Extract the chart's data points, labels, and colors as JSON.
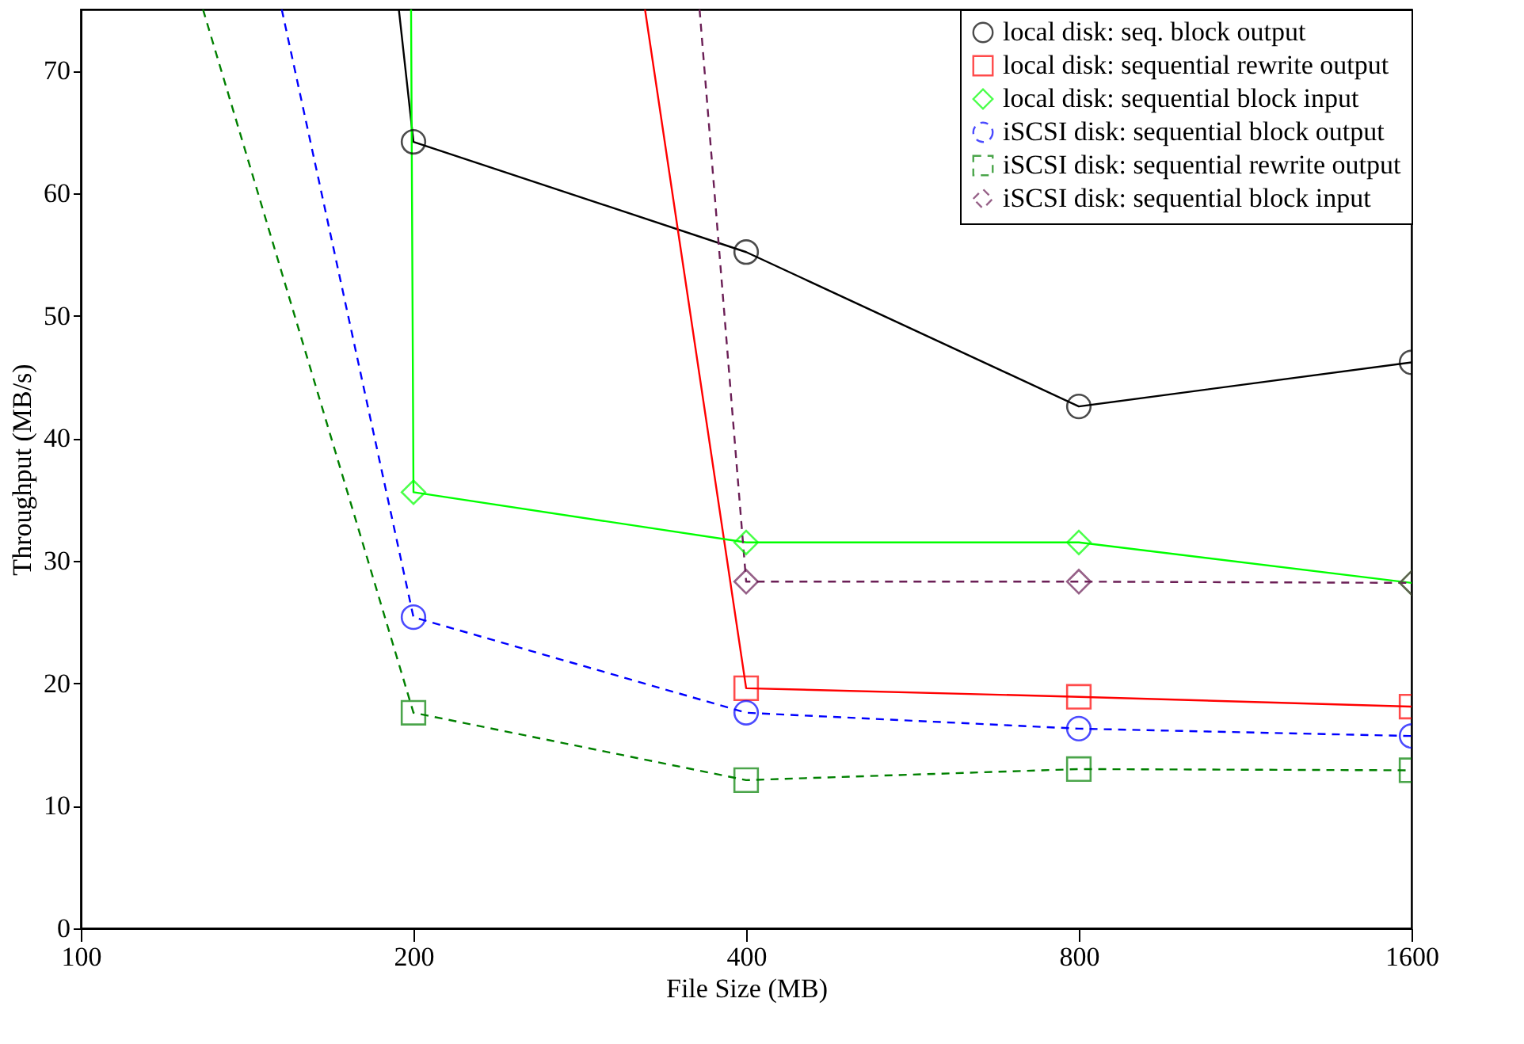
{
  "chart_data": {
    "type": "line",
    "xlabel": "File Size (MB)",
    "ylabel": "Throughput (MB/s)",
    "log": "x",
    "xlim": [
      100,
      1600
    ],
    "xticks": [
      100,
      200,
      400,
      800,
      1600
    ],
    "ylim": [
      0,
      75
    ],
    "yticks": [
      0,
      10,
      20,
      30,
      40,
      50,
      60,
      70
    ],
    "grid": false,
    "legend": "top right",
    "series": [
      {
        "name": "local disk: seq. block output",
        "color": "#000000",
        "marker": "circle",
        "line_style": "solid",
        "x": [
          194,
          200,
          400,
          800,
          1600
        ],
        "values": [
          75,
          64.2,
          55.2,
          42.6,
          46.2
        ]
      },
      {
        "name": "local disk: sequential rewrite output",
        "color": "#ff0000",
        "marker": "square",
        "line_style": "solid",
        "x": [
          324,
          400,
          800,
          1600
        ],
        "values": [
          75,
          19.6,
          18.9,
          18.1
        ]
      },
      {
        "name": "local disk: sequential block input",
        "color": "#00ff00",
        "marker": "diamond",
        "line_style": "solid",
        "x": [
          199,
          200,
          400,
          800,
          1600
        ],
        "values": [
          75,
          35.6,
          31.5,
          31.5,
          28.2
        ]
      },
      {
        "name": "iSCSI disk: sequential block output",
        "color": "#0000ff",
        "marker": "circle",
        "line_style": "dashed",
        "x": [
          152,
          200,
          400,
          800,
          1600
        ],
        "values": [
          75,
          25.4,
          17.6,
          16.3,
          15.7
        ]
      },
      {
        "name": "iSCSI disk: sequential rewrite output",
        "color": "#008000",
        "marker": "square",
        "line_style": "dashed",
        "x": [
          129,
          200,
          400,
          800,
          1600
        ],
        "values": [
          75,
          17.6,
          12.1,
          13.0,
          12.9
        ]
      },
      {
        "name": "iSCSI disk: sequential block input",
        "color": "#6b1f56",
        "marker": "diamond",
        "line_style": "dashed",
        "x": [
          363,
          400,
          800,
          1600
        ],
        "values": [
          75,
          28.3,
          28.3,
          28.2
        ]
      }
    ]
  }
}
